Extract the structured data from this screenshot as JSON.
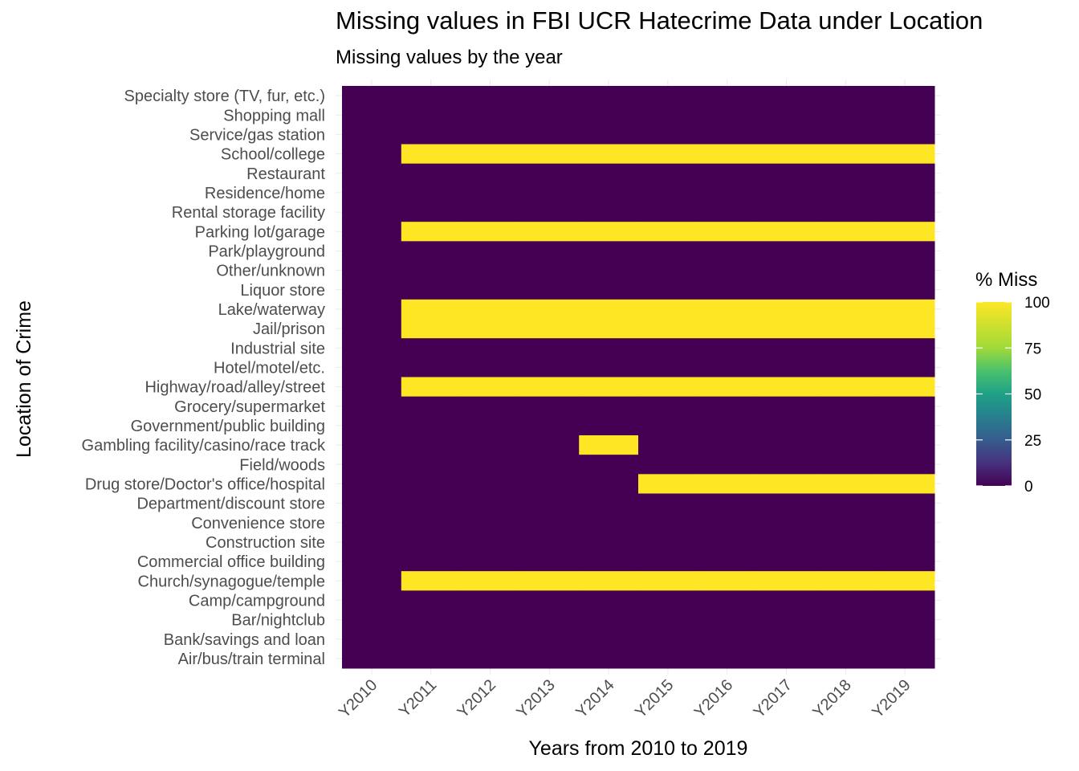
{
  "chart_data": {
    "type": "heatmap",
    "title": "Missing values in FBI UCR Hatecrime Data under Location",
    "subtitle": "Missing values by the year",
    "xlabel": "Years from 2010 to 2019",
    "ylabel": "Location of Crime",
    "x": [
      "Y2010",
      "Y2011",
      "Y2012",
      "Y2013",
      "Y2014",
      "Y2015",
      "Y2016",
      "Y2017",
      "Y2018",
      "Y2019"
    ],
    "y": [
      "Specialty store (TV, fur, etc.)",
      "Shopping mall",
      "Service/gas station",
      "School/college",
      "Restaurant",
      "Residence/home",
      "Rental storage facility",
      "Parking lot/garage",
      "Park/playground",
      "Other/unknown",
      "Liquor store",
      "Lake/waterway",
      "Jail/prison",
      "Industrial site",
      "Hotel/motel/etc.",
      "Highway/road/alley/street",
      "Grocery/supermarket",
      "Government/public building",
      "Gambling facility/casino/race track",
      "Field/woods",
      "Drug store/Doctor's office/hospital",
      "Department/discount store",
      "Convenience store",
      "Construction site",
      "Commercial office building",
      "Church/synagogue/temple",
      "Camp/campground",
      "Bar/nightclub",
      "Bank/savings and loan",
      "Air/bus/train terminal"
    ],
    "values": [
      [
        0,
        0,
        0,
        0,
        0,
        0,
        0,
        0,
        0,
        0
      ],
      [
        0,
        0,
        0,
        0,
        0,
        0,
        0,
        0,
        0,
        0
      ],
      [
        0,
        0,
        0,
        0,
        0,
        0,
        0,
        0,
        0,
        0
      ],
      [
        0,
        100,
        100,
        100,
        100,
        100,
        100,
        100,
        100,
        100
      ],
      [
        0,
        0,
        0,
        0,
        0,
        0,
        0,
        0,
        0,
        0
      ],
      [
        0,
        0,
        0,
        0,
        0,
        0,
        0,
        0,
        0,
        0
      ],
      [
        0,
        0,
        0,
        0,
        0,
        0,
        0,
        0,
        0,
        0
      ],
      [
        0,
        100,
        100,
        100,
        100,
        100,
        100,
        100,
        100,
        100
      ],
      [
        0,
        0,
        0,
        0,
        0,
        0,
        0,
        0,
        0,
        0
      ],
      [
        0,
        0,
        0,
        0,
        0,
        0,
        0,
        0,
        0,
        0
      ],
      [
        0,
        0,
        0,
        0,
        0,
        0,
        0,
        0,
        0,
        0
      ],
      [
        0,
        100,
        100,
        100,
        100,
        100,
        100,
        100,
        100,
        100
      ],
      [
        0,
        100,
        100,
        100,
        100,
        100,
        100,
        100,
        100,
        100
      ],
      [
        0,
        0,
        0,
        0,
        0,
        0,
        0,
        0,
        0,
        0
      ],
      [
        0,
        0,
        0,
        0,
        0,
        0,
        0,
        0,
        0,
        0
      ],
      [
        0,
        100,
        100,
        100,
        100,
        100,
        100,
        100,
        100,
        100
      ],
      [
        0,
        0,
        0,
        0,
        0,
        0,
        0,
        0,
        0,
        0
      ],
      [
        0,
        0,
        0,
        0,
        0,
        0,
        0,
        0,
        0,
        0
      ],
      [
        0,
        0,
        0,
        0,
        100,
        0,
        0,
        0,
        0,
        0
      ],
      [
        0,
        0,
        0,
        0,
        0,
        0,
        0,
        0,
        0,
        0
      ],
      [
        0,
        0,
        0,
        0,
        0,
        100,
        100,
        100,
        100,
        100
      ],
      [
        0,
        0,
        0,
        0,
        0,
        0,
        0,
        0,
        0,
        0
      ],
      [
        0,
        0,
        0,
        0,
        0,
        0,
        0,
        0,
        0,
        0
      ],
      [
        0,
        0,
        0,
        0,
        0,
        0,
        0,
        0,
        0,
        0
      ],
      [
        0,
        0,
        0,
        0,
        0,
        0,
        0,
        0,
        0,
        0
      ],
      [
        0,
        100,
        100,
        100,
        100,
        100,
        100,
        100,
        100,
        100
      ],
      [
        0,
        0,
        0,
        0,
        0,
        0,
        0,
        0,
        0,
        0
      ],
      [
        0,
        0,
        0,
        0,
        0,
        0,
        0,
        0,
        0,
        0
      ],
      [
        0,
        0,
        0,
        0,
        0,
        0,
        0,
        0,
        0,
        0
      ],
      [
        0,
        0,
        0,
        0,
        0,
        0,
        0,
        0,
        0,
        0
      ]
    ],
    "color_range": [
      0,
      100
    ],
    "colorscale": "viridis",
    "colors": {
      "low": "#440154",
      "high": "#fde725"
    },
    "legend": {
      "title": "% Miss",
      "ticks": [
        100,
        75,
        50,
        25,
        0
      ],
      "placement": "right"
    },
    "grid": true
  }
}
